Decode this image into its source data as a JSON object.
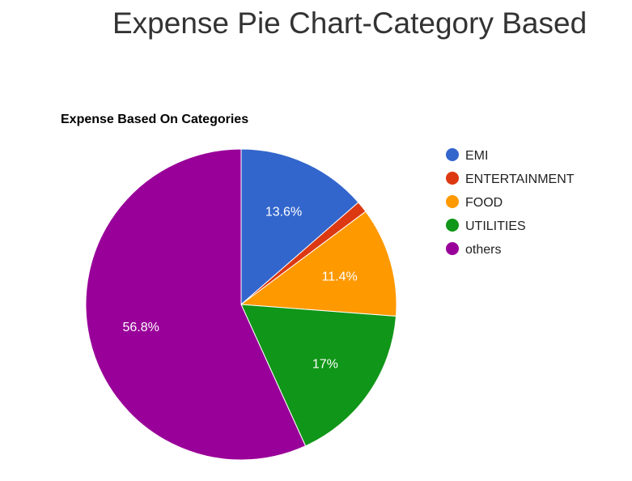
{
  "page": {
    "title": "Expense Pie Chart-Category Based"
  },
  "chart_data": {
    "type": "pie",
    "title": "Expense Based On Categories",
    "legend_position": "right",
    "slices": [
      {
        "label": "EMI",
        "value": 13.6,
        "display": "13.6%",
        "color": "#3366cc"
      },
      {
        "label": "ENTERTAINMENT",
        "value": 1.2,
        "display": "",
        "color": "#dc3912"
      },
      {
        "label": "FOOD",
        "value": 11.4,
        "display": "11.4%",
        "color": "#ff9900"
      },
      {
        "label": "UTILITIES",
        "value": 17.0,
        "display": "17%",
        "color": "#109618"
      },
      {
        "label": "others",
        "value": 56.8,
        "display": "56.8%",
        "color": "#990099"
      }
    ]
  }
}
